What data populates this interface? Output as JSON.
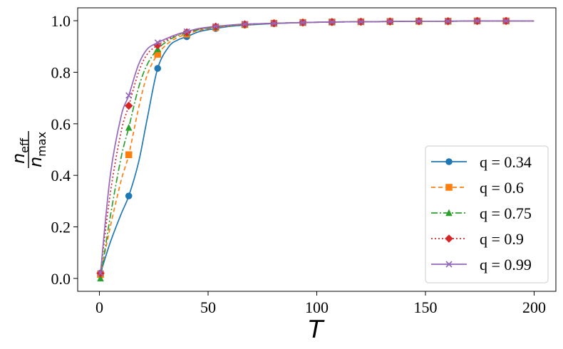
{
  "chart_data": {
    "type": "line",
    "title": "",
    "xlabel": "T",
    "ylabel": {
      "numerator": "n",
      "numerator_sub": "eff",
      "denominator": "n",
      "denominator_sub": "max"
    },
    "xlim": [
      -10,
      210
    ],
    "ylim": [
      -0.05,
      1.05
    ],
    "xticks": [
      0,
      50,
      100,
      150,
      200
    ],
    "yticks": [
      0.0,
      0.2,
      0.4,
      0.6,
      0.8,
      1.0
    ],
    "xtick_labels": [
      "0",
      "50",
      "100",
      "150",
      "200"
    ],
    "ytick_labels": [
      "0.0",
      "0.2",
      "0.4",
      "0.6",
      "0.8",
      "1.0"
    ],
    "grid": false,
    "legend_position": "lower-right",
    "marker_x": [
      0.5,
      13.5,
      26.8,
      40.2,
      53.5,
      66.9,
      80.3,
      93.6,
      107,
      120.3,
      133.7,
      147,
      160.4,
      173.8,
      187.1
    ],
    "series": [
      {
        "name": "q = 0.34",
        "color": "#1f77b4",
        "dash": "",
        "marker": "circle",
        "x": [
          0.5,
          5,
          10,
          13.5,
          18,
          22,
          26.8,
          32,
          36,
          40.2,
          46,
          53.5,
          60,
          66.9,
          80.3,
          93.6,
          107,
          120.3,
          133.7,
          147,
          160.4,
          173.8,
          187.1,
          200
        ],
        "values": [
          0.02,
          0.14,
          0.25,
          0.32,
          0.45,
          0.62,
          0.815,
          0.9,
          0.925,
          0.938,
          0.958,
          0.97,
          0.978,
          0.983,
          0.989,
          0.993,
          0.995,
          0.996,
          0.997,
          0.998,
          0.998,
          0.999,
          0.999,
          0.999
        ]
      },
      {
        "name": "q = 0.6",
        "color": "#ff7f0e",
        "dash": "6,4",
        "marker": "square",
        "x": [
          0.5,
          5,
          10,
          13.5,
          18,
          22,
          26.8,
          32,
          36,
          40.2,
          46,
          53.5,
          60,
          66.9,
          80.3,
          93.6,
          107,
          120.3,
          133.7,
          147,
          160.4,
          173.8,
          187.1,
          200
        ],
        "values": [
          0.015,
          0.2,
          0.38,
          0.48,
          0.66,
          0.79,
          0.87,
          0.915,
          0.935,
          0.948,
          0.963,
          0.974,
          0.98,
          0.985,
          0.99,
          0.993,
          0.995,
          0.996,
          0.997,
          0.998,
          0.998,
          0.999,
          0.999,
          0.999
        ]
      },
      {
        "name": "q = 0.75",
        "color": "#2ca02c",
        "dash": "9,3,2,3",
        "marker": "triangle",
        "x": [
          0.5,
          5,
          10,
          13.5,
          18,
          22,
          26.8,
          32,
          36,
          40.2,
          46,
          53.5,
          60,
          66.9,
          80.3,
          93.6,
          107,
          120.3,
          133.7,
          147,
          160.4,
          173.8,
          187.1,
          200
        ],
        "values": [
          0.0,
          0.24,
          0.47,
          0.585,
          0.74,
          0.83,
          0.89,
          0.925,
          0.942,
          0.953,
          0.966,
          0.976,
          0.981,
          0.986,
          0.99,
          0.993,
          0.995,
          0.996,
          0.997,
          0.998,
          0.998,
          0.999,
          0.999,
          0.999
        ]
      },
      {
        "name": "q = 0.9",
        "color": "#d62728",
        "dash": "2,3",
        "marker": "diamond",
        "x": [
          0.5,
          5,
          10,
          13.5,
          18,
          22,
          26.8,
          32,
          36,
          40.2,
          46,
          53.5,
          60,
          66.9,
          80.3,
          93.6,
          107,
          120.3,
          133.7,
          147,
          160.4,
          173.8,
          187.1,
          200
        ],
        "values": [
          0.02,
          0.33,
          0.57,
          0.67,
          0.8,
          0.87,
          0.905,
          0.93,
          0.945,
          0.955,
          0.968,
          0.977,
          0.982,
          0.986,
          0.99,
          0.993,
          0.995,
          0.996,
          0.997,
          0.998,
          0.998,
          0.999,
          0.999,
          0.999
        ]
      },
      {
        "name": "q = 0.99",
        "color": "#9467bd",
        "dash": "",
        "marker": "x",
        "x": [
          0.5,
          5,
          10,
          13.5,
          18,
          22,
          26.8,
          32,
          36,
          40.2,
          46,
          53.5,
          60,
          66.9,
          80.3,
          93.6,
          107,
          120.3,
          133.7,
          147,
          160.4,
          173.8,
          187.1,
          200
        ],
        "values": [
          0.02,
          0.4,
          0.63,
          0.71,
          0.83,
          0.89,
          0.915,
          0.935,
          0.948,
          0.958,
          0.97,
          0.978,
          0.983,
          0.987,
          0.99,
          0.993,
          0.995,
          0.996,
          0.997,
          0.998,
          0.998,
          0.999,
          0.999,
          0.999
        ]
      }
    ]
  }
}
